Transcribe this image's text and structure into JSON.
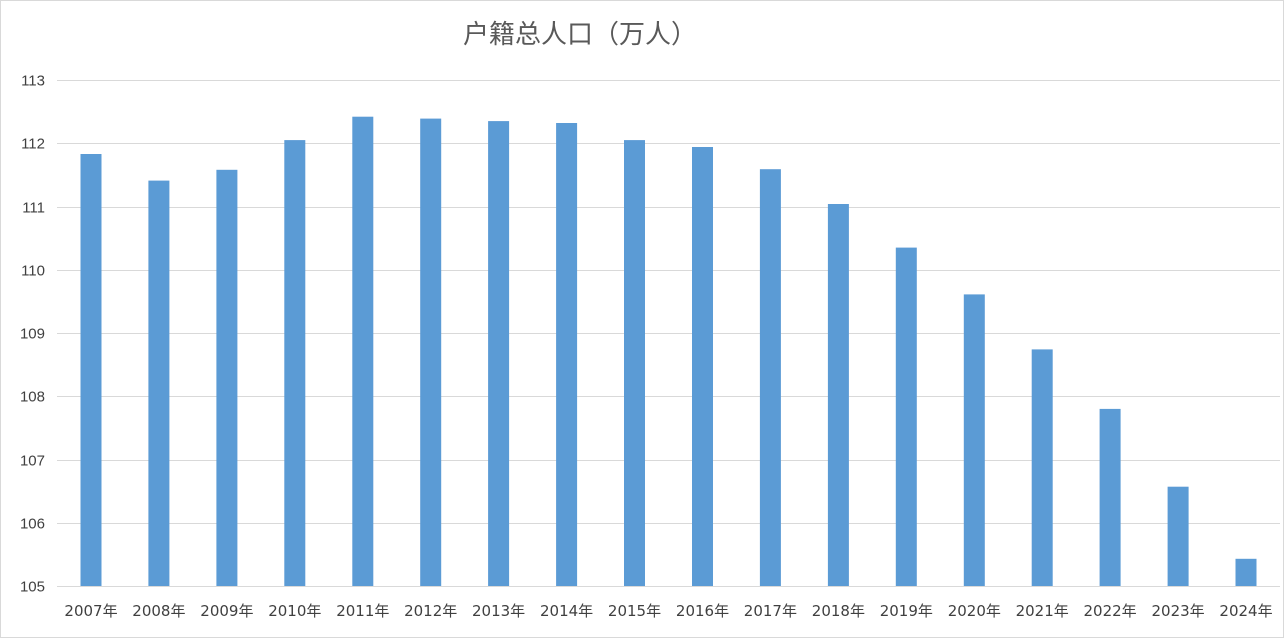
{
  "chart_data": {
    "type": "bar",
    "title": "户籍总人口（万人）",
    "categories": [
      "2007年",
      "2008年",
      "2009年",
      "2010年",
      "2011年",
      "2012年",
      "2013年",
      "2014年",
      "2015年",
      "2016年",
      "2017年",
      "2018年",
      "2019年",
      "2020年",
      "2021年",
      "2022年",
      "2023年",
      "2024年"
    ],
    "series": [
      {
        "values": [
          111.83,
          111.41,
          111.58,
          112.05,
          112.42,
          112.39,
          112.35,
          112.32,
          112.05,
          111.94,
          111.59,
          111.04,
          110.35,
          109.61,
          108.74,
          107.8,
          106.57,
          105.43
        ],
        "color": "#5b9bd5"
      }
    ],
    "ylim": [
      105,
      113
    ],
    "yticks": [
      105,
      106,
      107,
      108,
      109,
      110,
      111,
      112,
      113
    ],
    "xlabel": "",
    "ylabel": "",
    "grid": true,
    "legend": "none"
  },
  "colors": {
    "bar": "#5b9bd5",
    "grid": "#d9d9d9",
    "text": "#404040",
    "title": "#595959"
  }
}
